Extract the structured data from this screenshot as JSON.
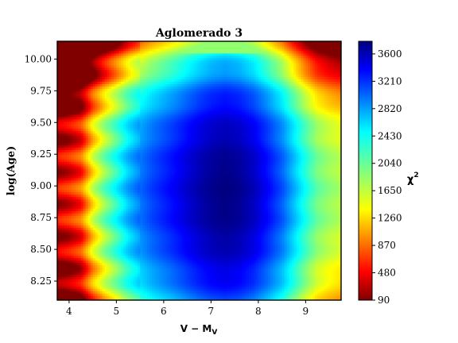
{
  "chart_data": {
    "type": "heatmap",
    "title": "Aglomerado 3",
    "xlabel": "V − M",
    "xlabel_sub": "V",
    "ylabel": "log(Age)",
    "colorbar_label": "χ",
    "colorbar_label_sup": "2",
    "xlim": [
      3.75,
      9.75
    ],
    "ylim": [
      8.1,
      10.14
    ],
    "x_ticks": [
      "4",
      "5",
      "6",
      "7",
      "8",
      "9"
    ],
    "x_tick_values": [
      4,
      5,
      6,
      7,
      8,
      9
    ],
    "y_ticks": [
      "8.25",
      "8.50",
      "8.75",
      "9.00",
      "9.25",
      "9.50",
      "9.75",
      "10.00"
    ],
    "y_tick_values": [
      8.25,
      8.5,
      8.75,
      9.0,
      9.25,
      9.5,
      9.75,
      10.0
    ],
    "colorbar_range": [
      90,
      3780
    ],
    "colorbar_ticks": [
      "3600",
      "3210",
      "2820",
      "2430",
      "2040",
      "1650",
      "1260",
      "870",
      "480",
      "90"
    ],
    "colorbar_tick_values": [
      3600,
      3210,
      2820,
      2430,
      2040,
      1650,
      1260,
      870,
      480,
      90
    ],
    "colormap": "jet",
    "minimum": {
      "x": 7.3,
      "y": 8.95,
      "chi2": 90
    },
    "x_profile": [
      [
        3.75,
        3450
      ],
      [
        4.0,
        3300
      ],
      [
        4.25,
        3050
      ],
      [
        4.5,
        2350
      ],
      [
        4.75,
        1900
      ],
      [
        5.0,
        1550
      ],
      [
        5.25,
        1200
      ],
      [
        5.5,
        950
      ],
      [
        5.75,
        780
      ],
      [
        6.0,
        650
      ],
      [
        6.25,
        520
      ],
      [
        6.5,
        380
      ],
      [
        6.75,
        250
      ],
      [
        7.0,
        150
      ],
      [
        7.3,
        90
      ],
      [
        7.6,
        150
      ],
      [
        7.9,
        300
      ],
      [
        8.2,
        560
      ],
      [
        8.5,
        850
      ],
      [
        8.75,
        1200
      ],
      [
        9.0,
        1550
      ],
      [
        9.25,
        1850
      ],
      [
        9.5,
        2000
      ],
      [
        9.75,
        2100
      ]
    ]
  }
}
